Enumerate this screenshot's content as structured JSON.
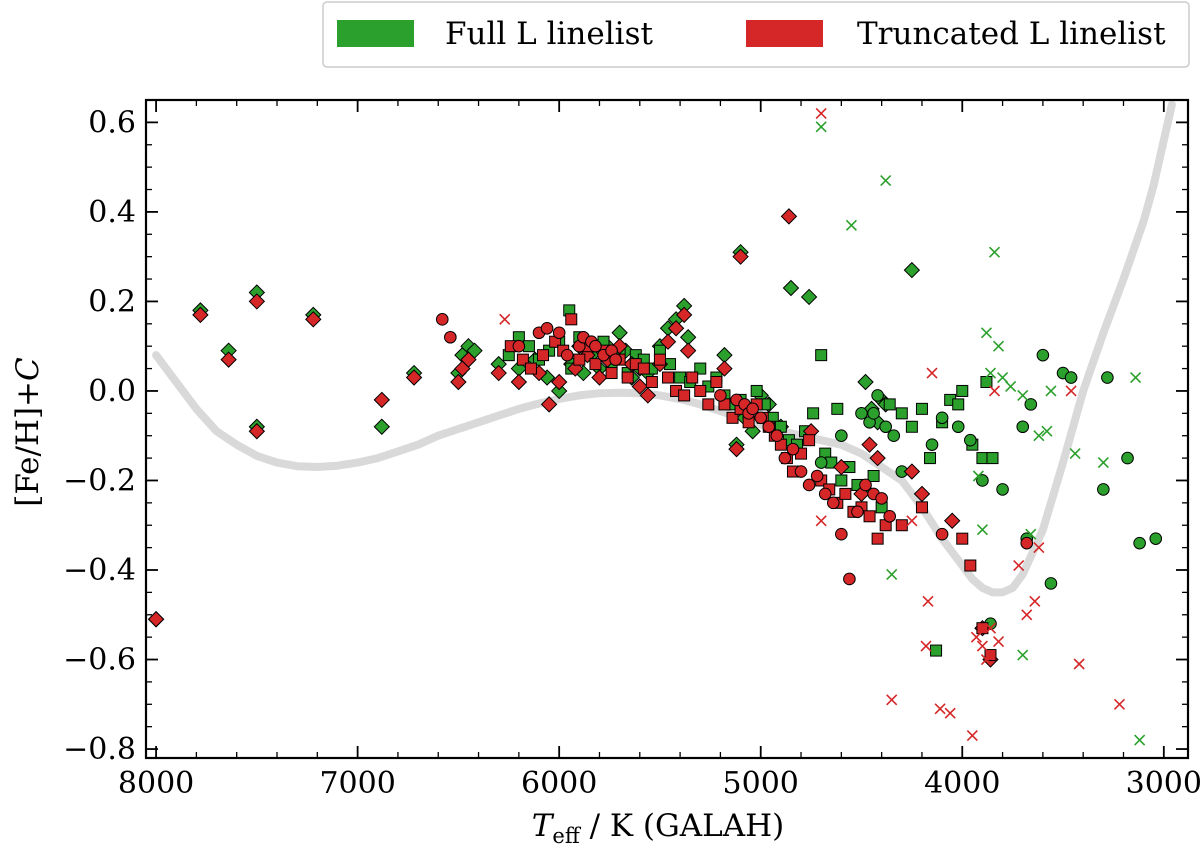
{
  "chart_data": {
    "type": "scatter",
    "title": "",
    "xlabel": "T_eff / K (GALAH)",
    "xlabel_parts": {
      "var": "T",
      "sub": "eff",
      "rest": " / K (GALAH)"
    },
    "ylabel": "[Fe/H]+C",
    "ylabel_parts": {
      "main": "[Fe/H]+",
      "italic": "C"
    },
    "xlim": [
      8050,
      2880
    ],
    "ylim": [
      -0.82,
      0.65
    ],
    "x_inverted": true,
    "xticks": [
      8000,
      7000,
      6000,
      5000,
      4000,
      3000
    ],
    "xtick_labels": [
      "8000",
      "7000",
      "6000",
      "5000",
      "4000",
      "3000"
    ],
    "yticks": [
      0.6,
      0.4,
      0.2,
      0.0,
      -0.2,
      -0.4,
      -0.6,
      -0.8
    ],
    "ytick_labels": [
      "0.6",
      "0.4",
      "0.2",
      "0.0",
      "−0.2",
      "−0.4",
      "−0.6",
      "−0.8"
    ],
    "grid": false,
    "legend_position": "top-right (above plot)",
    "legend": [
      {
        "label": "Full L linelist",
        "color": "#2ca02c"
      },
      {
        "label": "Truncated L linelist",
        "color": "#d62728"
      }
    ],
    "colors": {
      "full": "#2ca02c",
      "truncated": "#d62728",
      "curve": "#d9d9d9"
    },
    "reference_curve": {
      "name": "reference trend (grey)",
      "x": [
        8000,
        7900,
        7800,
        7700,
        7600,
        7500,
        7400,
        7300,
        7200,
        7100,
        7000,
        6900,
        6800,
        6700,
        6600,
        6500,
        6400,
        6300,
        6200,
        6100,
        6000,
        5900,
        5800,
        5700,
        5600,
        5500,
        5400,
        5300,
        5200,
        5100,
        5000,
        4900,
        4800,
        4700,
        4600,
        4500,
        4400,
        4300,
        4200,
        4100,
        4000,
        3950,
        3900,
        3850,
        3800,
        3750,
        3700,
        3600,
        3500,
        3400,
        3300,
        3200,
        3100,
        3050,
        3000,
        2960
      ],
      "y": [
        0.08,
        0.02,
        -0.04,
        -0.09,
        -0.12,
        -0.145,
        -0.16,
        -0.168,
        -0.17,
        -0.167,
        -0.16,
        -0.15,
        -0.135,
        -0.12,
        -0.1,
        -0.085,
        -0.07,
        -0.055,
        -0.04,
        -0.028,
        -0.018,
        -0.01,
        -0.005,
        -0.004,
        -0.005,
        -0.01,
        -0.018,
        -0.03,
        -0.045,
        -0.06,
        -0.075,
        -0.09,
        -0.1,
        -0.11,
        -0.12,
        -0.14,
        -0.17,
        -0.2,
        -0.26,
        -0.33,
        -0.39,
        -0.42,
        -0.44,
        -0.45,
        -0.45,
        -0.44,
        -0.41,
        -0.31,
        -0.16,
        0.0,
        0.13,
        0.25,
        0.38,
        0.46,
        0.56,
        0.64
      ]
    },
    "series": [
      {
        "name": "Full L linelist - diamonds",
        "group": "full",
        "marker": "diamond",
        "x": [
          8000,
          7780,
          7640,
          7500,
          7500,
          7220,
          6880,
          6720,
          6500,
          6480,
          6450,
          6420,
          6300,
          6200,
          6120,
          6060,
          6000,
          5940,
          5900,
          5880,
          5840,
          5800,
          5760,
          5740,
          5700,
          5670,
          5640,
          5600,
          5560,
          5500,
          5460,
          5420,
          5380,
          5360,
          5180,
          5120,
          5100,
          5080,
          5040,
          5000,
          4960,
          4900,
          4850,
          4760,
          4480,
          4450,
          4420,
          4400,
          4380,
          4250
        ],
        "y": [
          -0.51,
          0.18,
          0.09,
          0.22,
          -0.08,
          0.17,
          -0.08,
          0.04,
          0.04,
          0.08,
          0.1,
          0.09,
          0.06,
          0.05,
          0.07,
          0.03,
          0.0,
          0.06,
          0.1,
          0.04,
          0.08,
          0.05,
          0.1,
          0.08,
          0.13,
          0.09,
          0.03,
          0.05,
          0.04,
          0.1,
          0.14,
          0.16,
          0.19,
          0.12,
          0.08,
          -0.12,
          0.31,
          -0.06,
          -0.09,
          -0.01,
          -0.03,
          -0.08,
          0.23,
          0.21,
          0.02,
          -0.04,
          -0.07,
          -0.02,
          -0.03,
          0.27
        ]
      },
      {
        "name": "Full L linelist - squares",
        "group": "full",
        "marker": "square",
        "x": [
          6250,
          6200,
          6150,
          6100,
          6050,
          6000,
          5950,
          5940,
          5900,
          5860,
          5820,
          5780,
          5740,
          5700,
          5660,
          5620,
          5580,
          5540,
          5500,
          5450,
          5400,
          5350,
          5300,
          5260,
          5220,
          5180,
          5140,
          5100,
          5060,
          5020,
          4980,
          4940,
          4900,
          4860,
          4820,
          4780,
          4740,
          4700,
          4680,
          4650,
          4620,
          4600,
          4560,
          4520,
          4480,
          4440,
          4400,
          4360,
          4300,
          4250,
          4200,
          4160,
          4130,
          4100,
          4060,
          4020,
          4000,
          3950,
          3900,
          3880,
          3850
        ],
        "y": [
          0.08,
          0.12,
          0.1,
          0.07,
          0.09,
          0.11,
          0.18,
          0.05,
          0.12,
          0.08,
          0.1,
          0.11,
          0.06,
          0.09,
          0.04,
          0.08,
          0.07,
          0.05,
          0.09,
          0.06,
          0.03,
          0.02,
          0.05,
          0.01,
          0.03,
          -0.01,
          -0.03,
          -0.02,
          -0.05,
          0.0,
          -0.03,
          -0.06,
          -0.08,
          -0.11,
          -0.12,
          -0.09,
          -0.05,
          0.08,
          -0.14,
          -0.16,
          -0.04,
          -0.2,
          -0.17,
          -0.21,
          -0.22,
          -0.19,
          -0.26,
          -0.03,
          -0.05,
          -0.08,
          -0.04,
          -0.15,
          -0.58,
          -0.07,
          -0.02,
          -0.03,
          0.0,
          -0.12,
          -0.15,
          0.02,
          -0.15
        ]
      },
      {
        "name": "Full L linelist - circles",
        "group": "full",
        "marker": "circle",
        "x": [
          4700,
          4600,
          4500,
          4460,
          4440,
          4420,
          4380,
          4340,
          4300,
          4150,
          4100,
          4020,
          3960,
          3900,
          3860,
          3800,
          3700,
          3680,
          3660,
          3600,
          3560,
          3500,
          3460,
          3300,
          3280,
          3180,
          3120,
          3040
        ],
        "y": [
          -0.16,
          -0.1,
          -0.05,
          -0.07,
          -0.05,
          -0.01,
          -0.08,
          -0.1,
          -0.18,
          -0.12,
          -0.06,
          -0.08,
          -0.11,
          -0.2,
          -0.52,
          -0.22,
          -0.08,
          -0.33,
          -0.03,
          0.08,
          -0.43,
          0.04,
          0.03,
          -0.22,
          0.03,
          -0.15,
          -0.34,
          -0.33
        ]
      },
      {
        "name": "Full L linelist - crosses",
        "group": "full",
        "marker": "cross",
        "x": [
          4700,
          4550,
          4380,
          4350,
          3920,
          3900,
          3880,
          3860,
          3840,
          3820,
          3800,
          3760,
          3700,
          3660,
          3620,
          3580,
          3560,
          3440,
          3300,
          3140,
          3120,
          3700
        ],
        "y": [
          0.59,
          0.37,
          0.47,
          -0.41,
          -0.19,
          -0.31,
          0.13,
          0.04,
          0.31,
          0.1,
          0.03,
          0.01,
          -0.59,
          -0.32,
          -0.1,
          -0.09,
          0.0,
          -0.14,
          -0.16,
          0.03,
          -0.78,
          -0.01
        ]
      },
      {
        "name": "Truncated L linelist - diamonds",
        "group": "truncated",
        "marker": "diamond",
        "x": [
          8000,
          7780,
          7640,
          7500,
          7500,
          7220,
          6880,
          6720,
          6500,
          6480,
          6450,
          6300,
          6200,
          6100,
          6050,
          6000,
          5920,
          5860,
          5800,
          5760,
          5700,
          5640,
          5600,
          5560,
          5500,
          5460,
          5420,
          5380,
          5360,
          5180,
          5120,
          5100,
          4860,
          4750,
          4600,
          4500,
          4460,
          4420,
          4250,
          4200,
          4050,
          3900,
          3860
        ],
        "y": [
          -0.51,
          0.17,
          0.07,
          0.2,
          -0.09,
          0.16,
          -0.02,
          0.03,
          0.02,
          0.05,
          0.07,
          0.04,
          0.02,
          0.04,
          -0.03,
          0.02,
          0.05,
          0.08,
          0.03,
          0.07,
          0.1,
          0.06,
          0.01,
          -0.01,
          0.06,
          0.11,
          0.14,
          0.17,
          0.09,
          0.05,
          -0.13,
          0.3,
          0.39,
          -0.09,
          -0.17,
          -0.23,
          -0.12,
          -0.15,
          -0.18,
          -0.23,
          -0.29,
          -0.53,
          -0.6
        ]
      },
      {
        "name": "Truncated L linelist - squares",
        "group": "truncated",
        "marker": "square",
        "x": [
          6240,
          6180,
          6140,
          6080,
          6020,
          5980,
          5940,
          5900,
          5860,
          5820,
          5780,
          5740,
          5700,
          5660,
          5620,
          5580,
          5540,
          5500,
          5460,
          5420,
          5380,
          5340,
          5300,
          5260,
          5220,
          5180,
          5140,
          5100,
          5060,
          5020,
          4990,
          4960,
          4930,
          4900,
          4870,
          4840,
          4800,
          4760,
          4700,
          4660,
          4620,
          4580,
          4540,
          4500,
          4460,
          4420,
          4380,
          4300,
          4200,
          4000,
          3960,
          3900,
          3860
        ],
        "y": [
          0.1,
          0.07,
          0.05,
          0.08,
          0.11,
          0.09,
          0.16,
          0.07,
          0.1,
          0.06,
          0.09,
          0.04,
          0.07,
          0.03,
          0.06,
          0.05,
          0.02,
          0.07,
          0.03,
          0.0,
          -0.01,
          0.03,
          0.0,
          -0.03,
          0.02,
          -0.03,
          -0.06,
          -0.04,
          -0.07,
          -0.03,
          -0.06,
          -0.08,
          -0.1,
          -0.12,
          -0.15,
          -0.18,
          -0.14,
          -0.11,
          -0.2,
          -0.22,
          -0.25,
          -0.23,
          -0.27,
          -0.26,
          -0.28,
          -0.33,
          -0.3,
          -0.3,
          -0.26,
          -0.33,
          -0.39,
          -0.53,
          -0.59
        ]
      },
      {
        "name": "Truncated L linelist - circles",
        "group": "truncated",
        "marker": "circle",
        "x": [
          6580,
          6540,
          6200,
          6100,
          6060,
          6000,
          5960,
          5900,
          5880,
          5840,
          5820,
          5780,
          5740,
          5720,
          5200,
          5120,
          5080,
          5060,
          5040,
          5000,
          4960,
          4920,
          4880,
          4840,
          4800,
          4760,
          4720,
          4680,
          4640,
          4600,
          4560,
          4520,
          4480,
          4440,
          4400,
          4360,
          4100,
          3680
        ],
        "y": [
          0.16,
          0.12,
          0.1,
          0.13,
          0.14,
          0.13,
          0.08,
          0.1,
          0.12,
          0.11,
          0.1,
          0.08,
          0.09,
          0.07,
          -0.01,
          -0.02,
          -0.03,
          -0.05,
          -0.04,
          -0.06,
          -0.08,
          -0.1,
          -0.15,
          -0.13,
          -0.18,
          -0.21,
          -0.19,
          -0.23,
          -0.25,
          -0.32,
          -0.42,
          -0.27,
          -0.21,
          -0.23,
          -0.24,
          -0.28,
          -0.32,
          -0.34
        ]
      },
      {
        "name": "Truncated L linelist - crosses",
        "group": "truncated",
        "marker": "cross",
        "x": [
          6270,
          4700,
          4700,
          4250,
          4180,
          4170,
          4150,
          4110,
          4060,
          3950,
          3930,
          3900,
          3880,
          3860,
          3840,
          3820,
          3720,
          3680,
          3640,
          3620,
          3460,
          3420,
          3220,
          4350
        ],
        "y": [
          0.16,
          0.62,
          -0.29,
          -0.29,
          -0.57,
          -0.47,
          0.04,
          -0.71,
          -0.72,
          -0.77,
          -0.55,
          -0.57,
          -0.6,
          -0.53,
          0.0,
          -0.56,
          -0.39,
          -0.5,
          -0.47,
          -0.35,
          0.0,
          -0.61,
          -0.7,
          -0.69
        ]
      }
    ]
  }
}
